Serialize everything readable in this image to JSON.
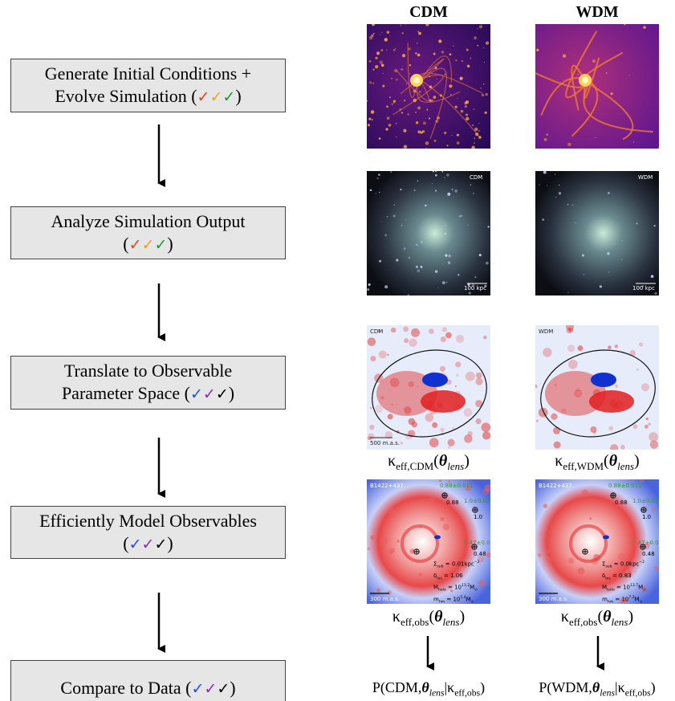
{
  "boxes": [
    {
      "lines": [
        [
          {
            "t": "Generate Initial Conditions +"
          }
        ],
        [
          {
            "t": "Evolve Simulation ("
          },
          {
            "t": "✓",
            "color": "#e8401c"
          },
          {
            "t": "✓",
            "color": "#f5a21b"
          },
          {
            "t": "✓",
            "color": "#1f9a2a"
          },
          {
            "t": ")"
          }
        ]
      ]
    },
    {
      "lines": [
        [
          {
            "t": "Analyze Simulation Output"
          }
        ],
        [
          {
            "t": "("
          },
          {
            "t": "✓",
            "color": "#e8401c"
          },
          {
            "t": "✓",
            "color": "#f5a21b"
          },
          {
            "t": "✓",
            "color": "#1f9a2a"
          },
          {
            "t": ")"
          }
        ]
      ]
    },
    {
      "lines": [
        [
          {
            "t": "Translate to Observable"
          }
        ],
        [
          {
            "t": "Parameter Space ("
          },
          {
            "t": "✓",
            "color": "#1f4fe0"
          },
          {
            "t": "✓",
            "color": "#8a2bb0"
          },
          {
            "t": "✓",
            "color": "#000000"
          },
          {
            "t": ")"
          }
        ]
      ]
    },
    {
      "lines": [
        [
          {
            "t": "Efficiently Model Observables"
          }
        ],
        [
          {
            "t": "("
          },
          {
            "t": "✓",
            "color": "#1f4fe0"
          },
          {
            "t": "✓",
            "color": "#8a2bb0"
          },
          {
            "t": "✓",
            "color": "#000000"
          },
          {
            "t": ")"
          }
        ]
      ]
    },
    {
      "lines": [
        [
          {
            "t": "Compare to Data ("
          },
          {
            "t": "✓",
            "color": "#1f4fe0"
          },
          {
            "t": "✓",
            "color": "#8a2bb0"
          },
          {
            "t": "✓",
            "color": "#000000"
          },
          {
            "t": ")"
          }
        ]
      ]
    }
  ],
  "columns": [
    {
      "header": "CDM",
      "panels": [
        {
          "annotations": []
        },
        {
          "annotations": [
            {
              "segs": [
                {
                  "t": "CDM"
                }
              ]
            },
            {
              "segs": [
                {
                  "t": "100 kpc"
                }
              ]
            }
          ]
        },
        {
          "annotations": [
            {
              "segs": [
                {
                  "t": "CDM"
                }
              ]
            },
            {
              "segs": [
                {
                  "t": "500 m.a.s."
                }
              ]
            }
          ]
        },
        {
          "annotations": [
            {
              "segs": [
                {
                  "t": "B1422+437"
                }
              ]
            },
            {
              "segs": [
                {
                  "t": "0.88±0.011"
                }
              ],
              "color": "#2f9a2f"
            },
            {
              "segs": [
                {
                  "t": "0.88"
                }
              ]
            },
            {
              "segs": [
                {
                  "t": "1.0±0.01"
                }
              ],
              "color": "#2f9a2f"
            },
            {
              "segs": [
                {
                  "t": "1.0"
                }
              ]
            },
            {
              "segs": [
                {
                  "t": "0.47±0.013"
                }
              ],
              "color": "#2f9a2f"
            },
            {
              "segs": [
                {
                  "t": "0.48"
                }
              ]
            },
            {
              "segs": [
                {
                  "t": "Σ"
                },
                {
                  "t": "sub",
                  "style": "sub"
                },
                {
                  "t": " = 0.01kpc"
                },
                {
                  "t": "−2",
                  "style": "sup"
                }
              ]
            },
            {
              "segs": [
                {
                  "t": "δ"
                },
                {
                  "t": "los",
                  "style": "sub"
                },
                {
                  "t": " = 1.06"
                }
              ]
            },
            {
              "segs": [
                {
                  "t": "M"
                },
                {
                  "t": "halo",
                  "style": "sub"
                },
                {
                  "t": " = 10"
                },
                {
                  "t": "13.2",
                  "style": "sup"
                },
                {
                  "t": "M"
                },
                {
                  "t": "⊙",
                  "style": "sub"
                }
              ]
            },
            {
              "segs": [
                {
                  "t": "m"
                },
                {
                  "t": "hm",
                  "style": "sub"
                },
                {
                  "t": " = 10"
                },
                {
                  "t": "5.4",
                  "style": "sup"
                },
                {
                  "t": "M"
                },
                {
                  "t": "⊙",
                  "style": "sub"
                }
              ]
            },
            {
              "segs": [
                {
                  "t": "300 m.a.s."
                }
              ]
            }
          ]
        }
      ],
      "kappa_label": [
        {
          "t": "κ"
        },
        {
          "t": "eff,CDM",
          "style": "sub"
        },
        {
          "t": "("
        },
        {
          "t": "θ",
          "style": "bi"
        },
        {
          "t": "lens",
          "style": "isub"
        },
        {
          "t": ")"
        }
      ],
      "obs_label": [
        {
          "t": "κ"
        },
        {
          "t": "eff,obs",
          "style": "sub"
        },
        {
          "t": "("
        },
        {
          "t": "θ",
          "style": "bi"
        },
        {
          "t": "lens",
          "style": "isub"
        },
        {
          "t": ")"
        }
      ],
      "posterior": [
        {
          "t": "P(CDM,"
        },
        {
          "t": "θ",
          "style": "bi"
        },
        {
          "t": "lens",
          "style": "isub"
        },
        {
          "t": "|κ"
        },
        {
          "t": "eff,obs",
          "style": "sub"
        },
        {
          "t": ")"
        }
      ]
    },
    {
      "header": "WDM",
      "panels": [
        {
          "annotations": []
        },
        {
          "annotations": [
            {
              "segs": [
                {
                  "t": "WDM"
                }
              ]
            },
            {
              "segs": [
                {
                  "t": "100 kpc"
                }
              ]
            }
          ]
        },
        {
          "annotations": [
            {
              "segs": [
                {
                  "t": "WDM"
                }
              ]
            }
          ]
        },
        {
          "annotations": [
            {
              "segs": [
                {
                  "t": "B1422+437"
                }
              ]
            },
            {
              "segs": [
                {
                  "t": "0.88±0.011"
                }
              ],
              "color": "#2f9a2f"
            },
            {
              "segs": [
                {
                  "t": "0.88"
                }
              ]
            },
            {
              "segs": [
                {
                  "t": "1.0±0.01"
                }
              ],
              "color": "#2f9a2f"
            },
            {
              "segs": [
                {
                  "t": "1.0"
                }
              ]
            },
            {
              "segs": [
                {
                  "t": "0.47±0.013"
                }
              ],
              "color": "#2f9a2f"
            },
            {
              "segs": [
                {
                  "t": "0.48"
                }
              ]
            },
            {
              "segs": [
                {
                  "t": "Σ"
                },
                {
                  "t": "sub",
                  "style": "sub"
                },
                {
                  "t": " = 0.0kpc"
                },
                {
                  "t": "−2",
                  "style": "sup"
                }
              ]
            },
            {
              "segs": [
                {
                  "t": "δ"
                },
                {
                  "t": "los",
                  "style": "sub"
                },
                {
                  "t": " = 0.83"
                }
              ]
            },
            {
              "segs": [
                {
                  "t": "M"
                },
                {
                  "t": "halo",
                  "style": "sub"
                },
                {
                  "t": " = 10"
                },
                {
                  "t": "13.7",
                  "style": "sup"
                },
                {
                  "t": "M"
                },
                {
                  "t": "⊙",
                  "style": "sub"
                }
              ]
            },
            {
              "segs": [
                {
                  "t": "m"
                },
                {
                  "t": "hm",
                  "style": "sub"
                },
                {
                  "t": " = 10"
                },
                {
                  "t": "7.2",
                  "style": "sup"
                },
                {
                  "t": "M"
                },
                {
                  "t": "⊙",
                  "style": "sub"
                }
              ]
            },
            {
              "segs": [
                {
                  "t": "300 m.a.s."
                }
              ]
            }
          ]
        }
      ],
      "kappa_label": [
        {
          "t": "κ"
        },
        {
          "t": "eff,WDM",
          "style": "sub"
        },
        {
          "t": "("
        },
        {
          "t": "θ",
          "style": "bi"
        },
        {
          "t": "lens",
          "style": "isub"
        },
        {
          "t": ")"
        }
      ],
      "obs_label": [
        {
          "t": "κ"
        },
        {
          "t": "eff,obs",
          "style": "sub"
        },
        {
          "t": "("
        },
        {
          "t": "θ",
          "style": "bi"
        },
        {
          "t": "lens",
          "style": "isub"
        },
        {
          "t": ")"
        }
      ],
      "posterior": [
        {
          "t": "P(WDM,"
        },
        {
          "t": "θ",
          "style": "bi"
        },
        {
          "t": "lens",
          "style": "isub"
        },
        {
          "t": "|κ"
        },
        {
          "t": "eff,obs",
          "style": "sub"
        },
        {
          "t": ")"
        }
      ]
    }
  ]
}
